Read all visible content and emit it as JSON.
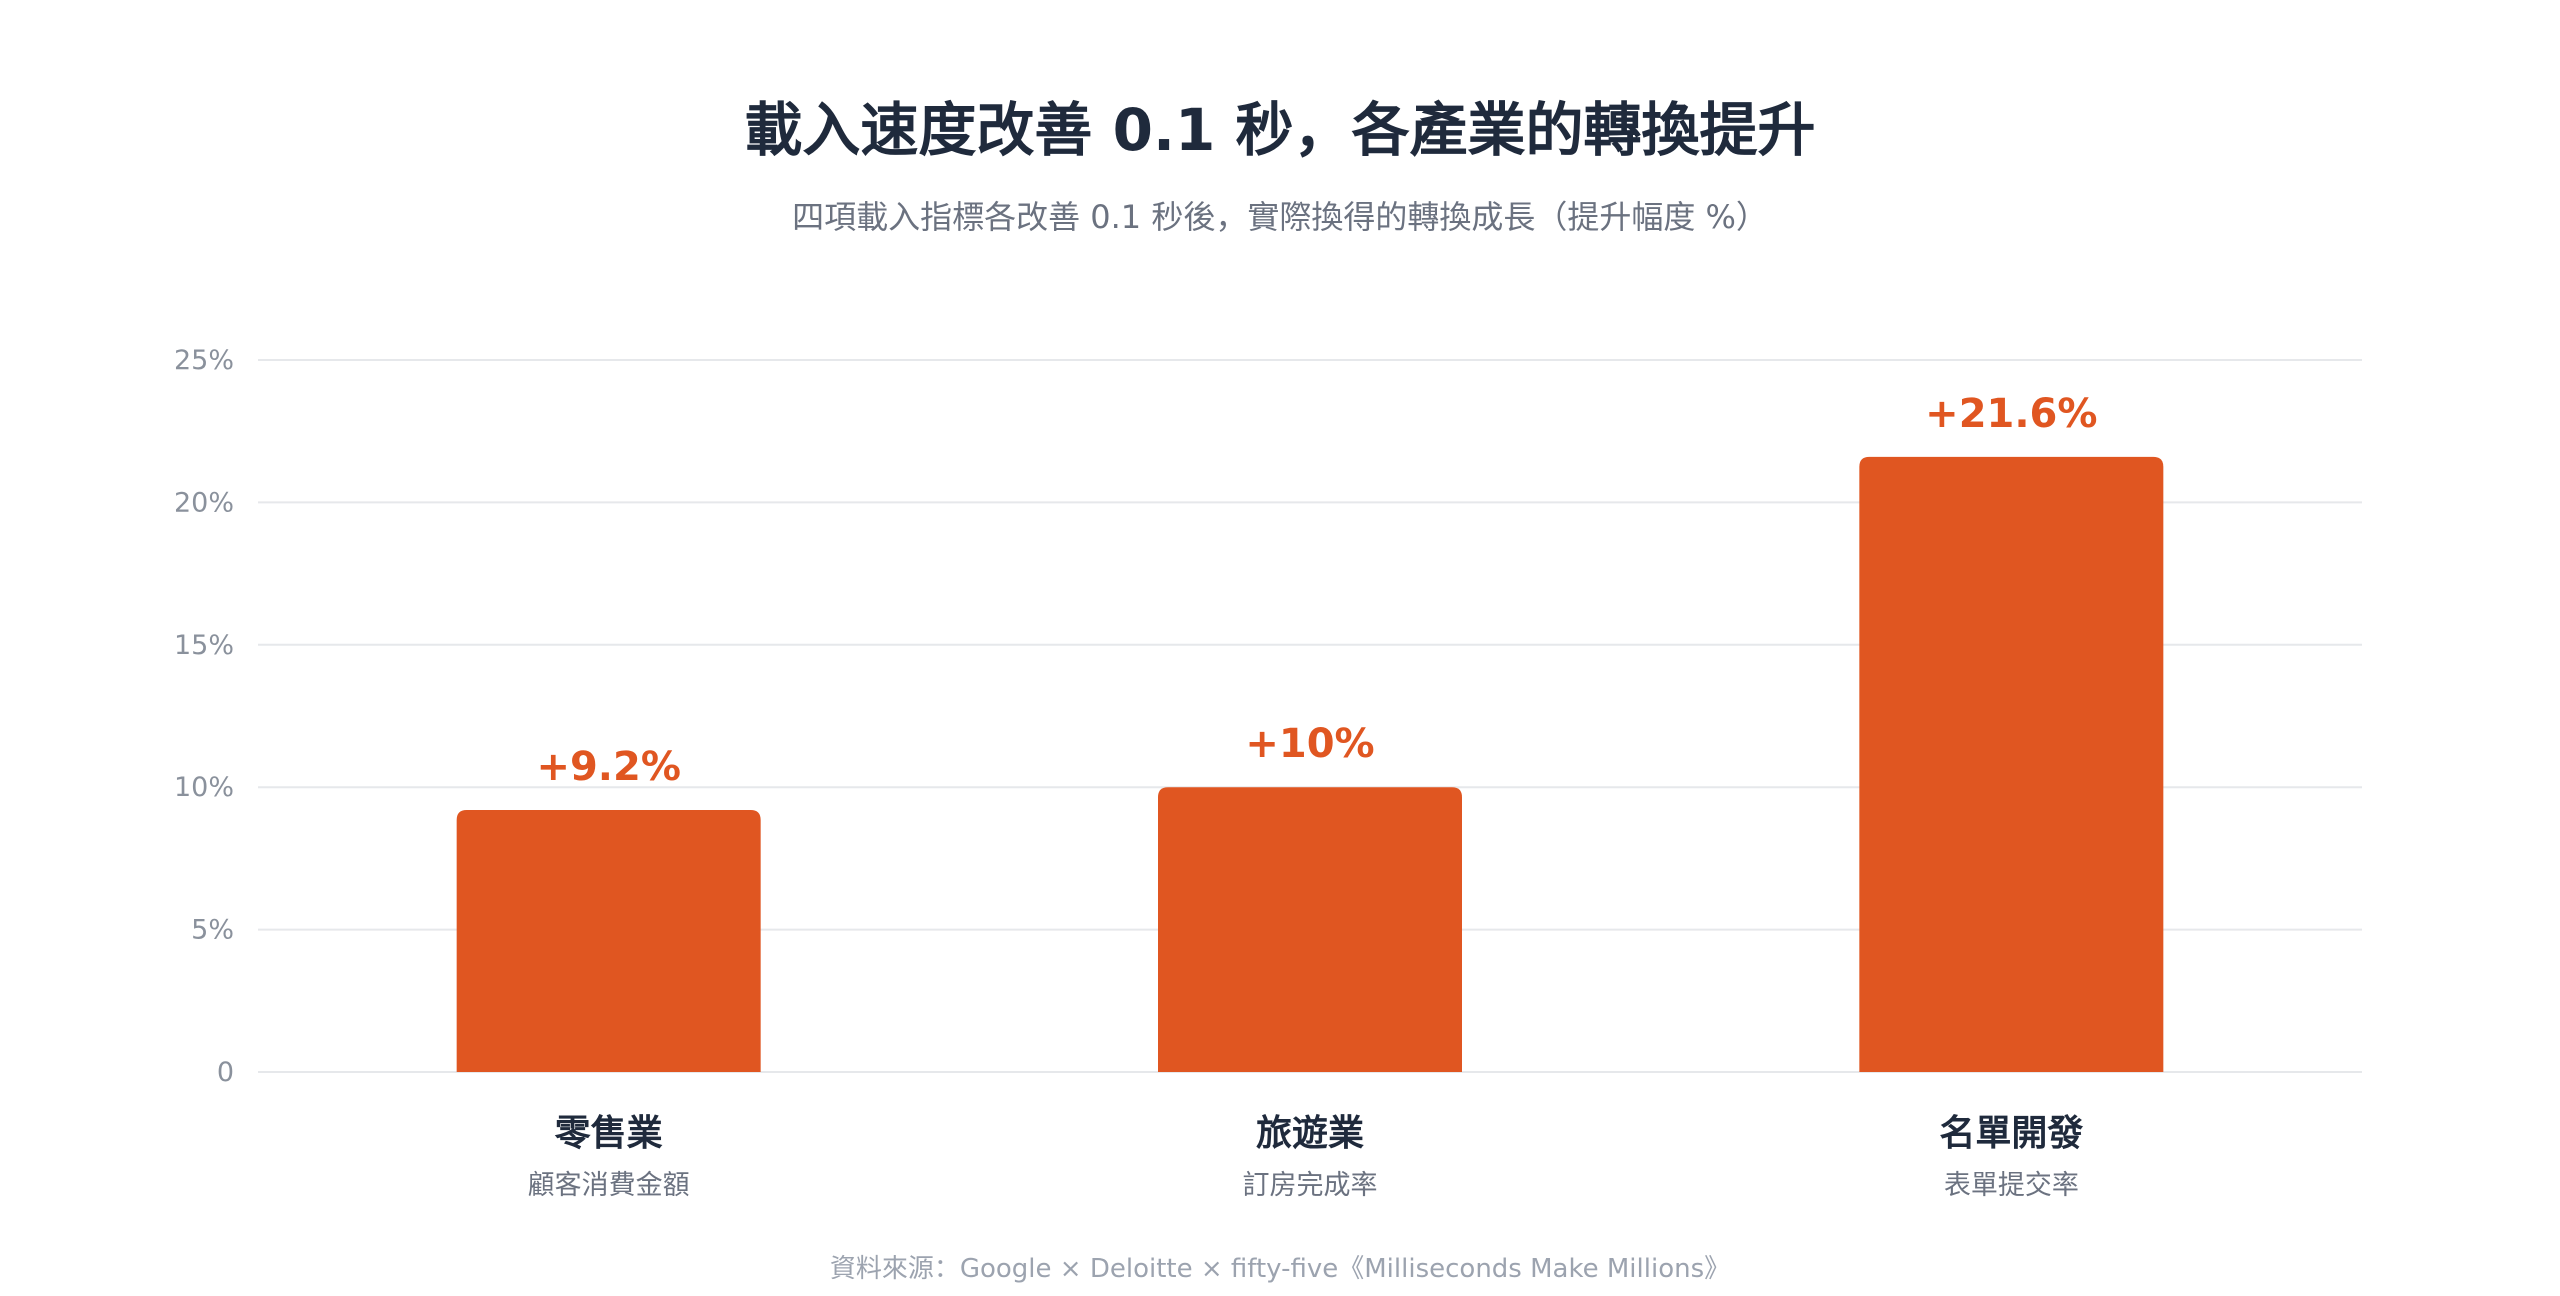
{
  "title": "載入速度改善 0.1 秒，各產業的轉換提升",
  "subtitle": "四項載入指標各改善 0.1 秒後，實際換得的轉換成長（提升幅度 %）",
  "source": "資料來源：Google × Deloitte × fifty-five《Milliseconds Make Millions》",
  "colors": {
    "bar": "#e05621",
    "grid": "#e6e8eb",
    "title": "#1f2a3c"
  },
  "chart_data": {
    "type": "bar",
    "categories": [
      "零售業",
      "旅遊業",
      "名單開發"
    ],
    "category_sublabels": [
      "顧客消費金額",
      "訂房完成率",
      "表單提交率"
    ],
    "values": [
      9.2,
      10,
      21.6
    ],
    "value_labels": [
      "+9.2%",
      "+10%",
      "+21.6%"
    ],
    "ylim": [
      0,
      25
    ],
    "yticks": [
      0,
      5,
      10,
      15,
      20,
      25
    ],
    "ytick_labels": [
      "0",
      "5%",
      "10%",
      "15%",
      "20%",
      "25%"
    ],
    "grid": true,
    "legend": "none"
  }
}
